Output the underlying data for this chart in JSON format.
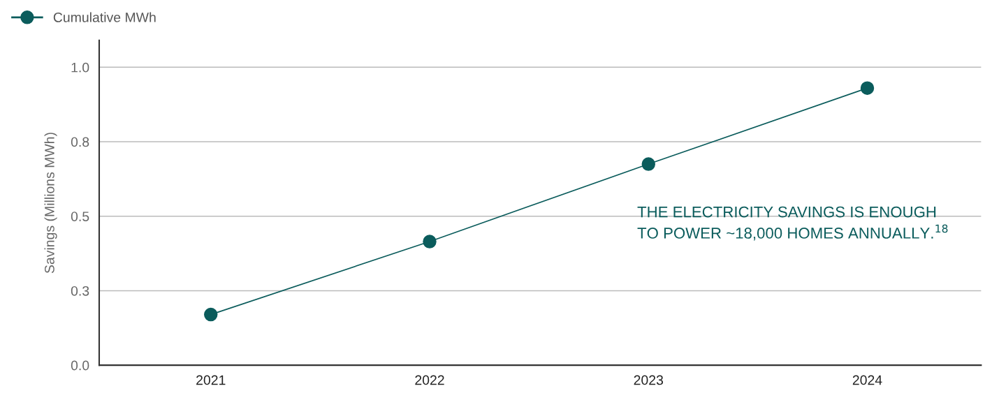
{
  "chart_data": {
    "type": "line",
    "ylabel": "Savings (Millions MWh)",
    "categories": [
      "2021",
      "2022",
      "2023",
      "2024"
    ],
    "series": [
      {
        "name": "Cumulative MWh",
        "color": "#0b5c5c",
        "values": [
          0.17,
          0.415,
          0.675,
          0.93
        ]
      }
    ],
    "ylim": [
      0,
      1.09
    ],
    "yticks": [
      {
        "value": 0,
        "label": "0.0"
      },
      {
        "value": 0.25,
        "label": "0.3"
      },
      0.5,
      {
        "value": 0.75,
        "label": "0.8"
      },
      {
        "value": 1,
        "label": "1.0"
      }
    ],
    "grid": "y",
    "legend": "top left",
    "marker": "circle",
    "line_style": "solid",
    "annotations": [
      "THE ELECTRICITY SAVINGS IS ENOUGH\nTO POWER ~18,000 HOMES ANNUALLY.$^{18}$"
    ]
  }
}
